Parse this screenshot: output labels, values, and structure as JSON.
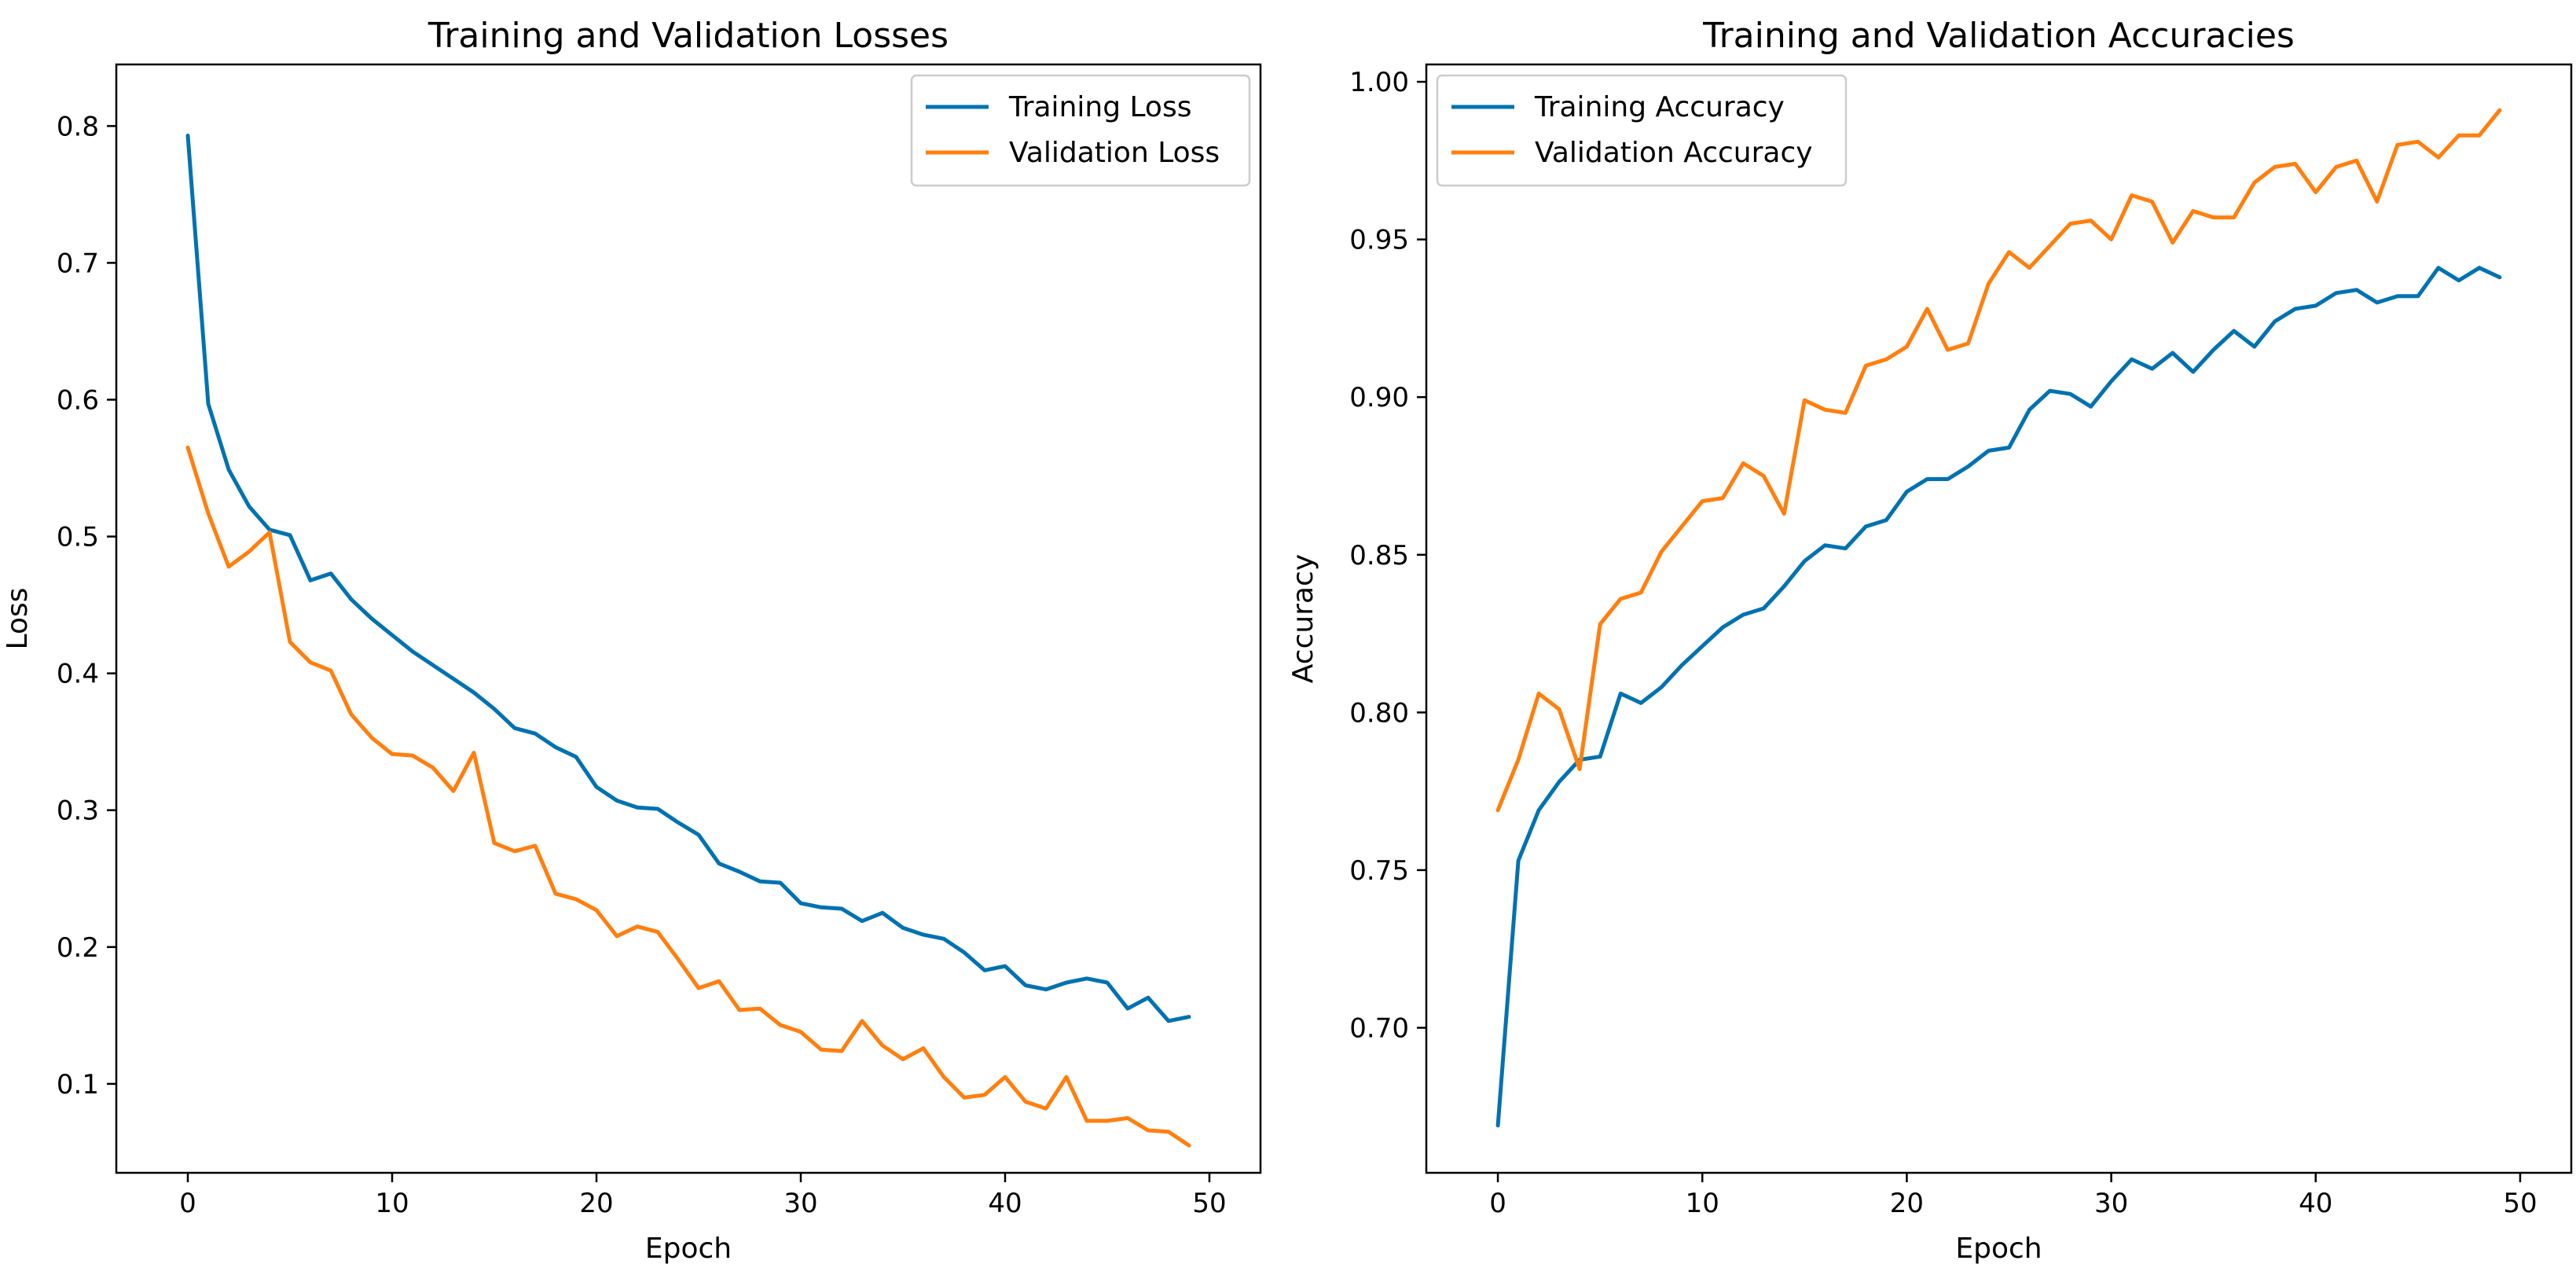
{
  "chart_data": [
    {
      "type": "line",
      "title": "Training and Validation Losses",
      "xlabel": "Epoch",
      "ylabel": "Loss",
      "xlim": [
        -3.5,
        52.5
      ],
      "ylim": [
        0.035,
        0.845
      ],
      "xticks": [
        0,
        10,
        20,
        30,
        40,
        50
      ],
      "xtick_labels": [
        "0",
        "10",
        "20",
        "30",
        "40",
        "50"
      ],
      "yticks": [
        0.1,
        0.2,
        0.3,
        0.4,
        0.5,
        0.6,
        0.7,
        0.8
      ],
      "ytick_labels": [
        "0.1",
        "0.2",
        "0.3",
        "0.4",
        "0.5",
        "0.6",
        "0.7",
        "0.8"
      ],
      "legend_position": "top-right",
      "x": [
        0,
        1,
        2,
        3,
        4,
        5,
        6,
        7,
        8,
        9,
        10,
        11,
        12,
        13,
        14,
        15,
        16,
        17,
        18,
        19,
        20,
        21,
        22,
        23,
        24,
        25,
        26,
        27,
        28,
        29,
        30,
        31,
        32,
        33,
        34,
        35,
        36,
        37,
        38,
        39,
        40,
        41,
        42,
        43,
        44,
        45,
        46,
        47,
        48,
        49
      ],
      "series": [
        {
          "name": "Training Loss",
          "color": "#0072B2",
          "values": [
            0.793,
            0.597,
            0.549,
            0.522,
            0.505,
            0.501,
            0.468,
            0.473,
            0.454,
            0.44,
            0.428,
            0.416,
            0.406,
            0.396,
            0.386,
            0.374,
            0.36,
            0.356,
            0.346,
            0.339,
            0.317,
            0.307,
            0.302,
            0.301,
            0.291,
            0.282,
            0.261,
            0.255,
            0.248,
            0.247,
            0.232,
            0.229,
            0.228,
            0.219,
            0.225,
            0.214,
            0.209,
            0.206,
            0.196,
            0.183,
            0.186,
            0.172,
            0.169,
            0.174,
            0.177,
            0.174,
            0.155,
            0.163,
            0.146,
            0.149
          ]
        },
        {
          "name": "Validation Loss",
          "color": "#FF7F0E",
          "values": [
            0.565,
            0.517,
            0.478,
            0.489,
            0.503,
            0.423,
            0.408,
            0.402,
            0.37,
            0.353,
            0.341,
            0.34,
            0.331,
            0.314,
            0.342,
            0.276,
            0.27,
            0.274,
            0.239,
            0.235,
            0.227,
            0.208,
            0.215,
            0.211,
            0.191,
            0.17,
            0.175,
            0.154,
            0.155,
            0.143,
            0.138,
            0.125,
            0.124,
            0.146,
            0.128,
            0.118,
            0.126,
            0.105,
            0.09,
            0.092,
            0.105,
            0.087,
            0.082,
            0.105,
            0.073,
            0.073,
            0.075,
            0.066,
            0.065,
            0.055
          ]
        }
      ]
    },
    {
      "type": "line",
      "title": "Training and Validation Accuracies",
      "xlabel": "Epoch",
      "ylabel": "Accuracy",
      "xlim": [
        -3.5,
        52.5
      ],
      "ylim": [
        0.654,
        1.0055
      ],
      "xticks": [
        0,
        10,
        20,
        30,
        40,
        50
      ],
      "xtick_labels": [
        "0",
        "10",
        "20",
        "30",
        "40",
        "50"
      ],
      "yticks": [
        0.7,
        0.75,
        0.8,
        0.85,
        0.9,
        0.95,
        1.0
      ],
      "ytick_labels": [
        "0.70",
        "0.75",
        "0.80",
        "0.85",
        "0.90",
        "0.95",
        "1.00"
      ],
      "legend_position": "top-left",
      "x": [
        0,
        1,
        2,
        3,
        4,
        5,
        6,
        7,
        8,
        9,
        10,
        11,
        12,
        13,
        14,
        15,
        16,
        17,
        18,
        19,
        20,
        21,
        22,
        23,
        24,
        25,
        26,
        27,
        28,
        29,
        30,
        31,
        32,
        33,
        34,
        35,
        36,
        37,
        38,
        39,
        40,
        41,
        42,
        43,
        44,
        45,
        46,
        47,
        48,
        49
      ],
      "series": [
        {
          "name": "Training Accuracy",
          "color": "#0072B2",
          "values": [
            0.669,
            0.753,
            0.769,
            0.778,
            0.785,
            0.786,
            0.806,
            0.803,
            0.808,
            0.815,
            0.821,
            0.827,
            0.831,
            0.833,
            0.84,
            0.848,
            0.853,
            0.852,
            0.859,
            0.861,
            0.87,
            0.874,
            0.874,
            0.878,
            0.883,
            0.884,
            0.896,
            0.902,
            0.901,
            0.897,
            0.905,
            0.912,
            0.909,
            0.914,
            0.908,
            0.915,
            0.921,
            0.916,
            0.924,
            0.928,
            0.929,
            0.933,
            0.934,
            0.93,
            0.932,
            0.932,
            0.941,
            0.937,
            0.941,
            0.938
          ]
        },
        {
          "name": "Validation Accuracy",
          "color": "#FF7F0E",
          "values": [
            0.769,
            0.785,
            0.806,
            0.801,
            0.782,
            0.828,
            0.836,
            0.838,
            0.851,
            0.859,
            0.867,
            0.868,
            0.879,
            0.875,
            0.863,
            0.899,
            0.896,
            0.895,
            0.91,
            0.912,
            0.916,
            0.928,
            0.915,
            0.917,
            0.936,
            0.946,
            0.941,
            0.948,
            0.955,
            0.956,
            0.95,
            0.964,
            0.962,
            0.949,
            0.959,
            0.957,
            0.957,
            0.968,
            0.973,
            0.974,
            0.965,
            0.973,
            0.975,
            0.962,
            0.98,
            0.981,
            0.976,
            0.983,
            0.983,
            0.991
          ]
        }
      ]
    }
  ]
}
